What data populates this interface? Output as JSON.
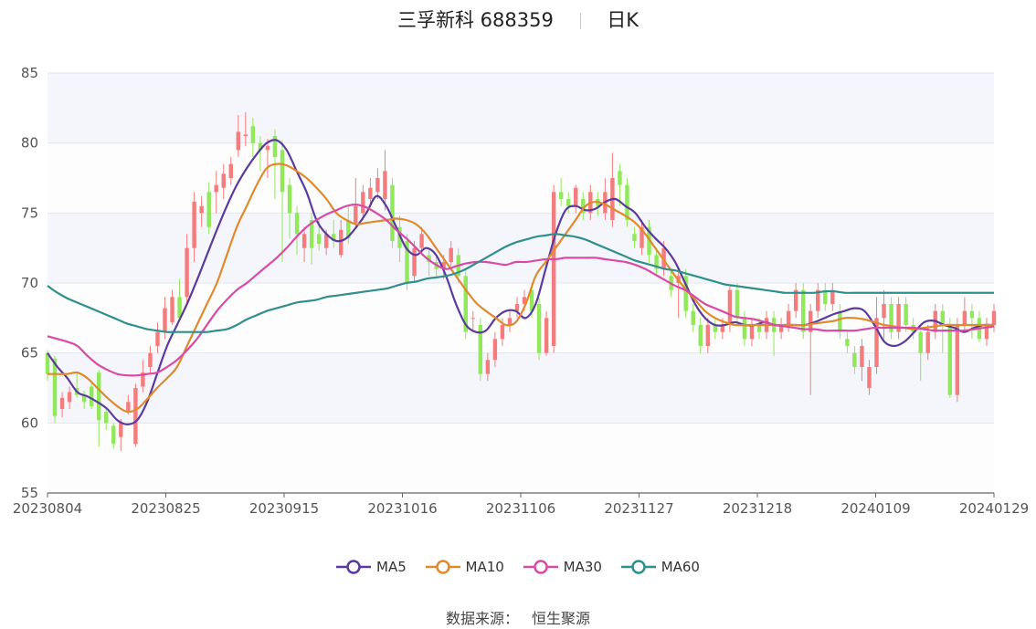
{
  "header": {
    "stock_title": "三孚新科 688359",
    "period": "日K"
  },
  "source": {
    "label": "数据来源：",
    "value": "恒生聚源"
  },
  "legend": [
    {
      "name": "MA5",
      "color": "#5b3a9e"
    },
    {
      "name": "MA10",
      "color": "#e08a2c"
    },
    {
      "name": "MA30",
      "color": "#d94aa6"
    },
    {
      "name": "MA60",
      "color": "#2f8f8c"
    }
  ],
  "colors": {
    "up": "#f47c7c",
    "down": "#91e85a",
    "grid_band": "#f5f6fb",
    "axis": "#555"
  },
  "chart_data": {
    "type": "candlestick",
    "ylim": [
      55,
      85
    ],
    "yticks": [
      55,
      60,
      65,
      70,
      75,
      80,
      85
    ],
    "xticks": [
      "20230804",
      "20230825",
      "20230915",
      "20231016",
      "20231106",
      "20231127",
      "20231218",
      "20240109",
      "20240129"
    ],
    "grid": true,
    "legend_position": "bottom",
    "candles": [
      [
        65.0,
        63.5,
        65.2,
        63.0
      ],
      [
        64.6,
        60.5,
        64.8,
        60.0
      ],
      [
        61.0,
        61.8,
        62.2,
        60.4
      ],
      [
        61.5,
        62.2,
        62.6,
        61.0
      ],
      [
        62.5,
        62.0,
        63.5,
        61.8
      ],
      [
        62.0,
        61.5,
        62.3,
        61.0
      ],
      [
        62.6,
        61.2,
        63.0,
        61.0
      ],
      [
        63.6,
        60.2,
        63.8,
        58.3
      ],
      [
        60.8,
        60.0,
        61.0,
        59.5
      ],
      [
        59.8,
        58.5,
        60.0,
        58.2
      ],
      [
        59.0,
        60.0,
        60.3,
        58.0
      ],
      [
        60.8,
        61.5,
        62.0,
        60.6
      ],
      [
        58.5,
        62.5,
        62.8,
        58.3
      ],
      [
        62.6,
        63.6,
        64.5,
        62.2
      ],
      [
        64.0,
        65.0,
        65.5,
        63.5
      ],
      [
        65.5,
        66.5,
        67.2,
        65.0
      ],
      [
        66.5,
        68.2,
        69.0,
        66.0
      ],
      [
        67.2,
        69.0,
        69.5,
        67.0
      ],
      [
        69.0,
        67.5,
        70.3,
        67.3
      ],
      [
        69.0,
        72.5,
        73.5,
        68.5
      ],
      [
        72.5,
        75.8,
        76.5,
        71.5
      ],
      [
        75.0,
        75.5,
        76.2,
        74.0
      ],
      [
        76.5,
        74.0,
        77.2,
        73.5
      ],
      [
        76.5,
        77.0,
        78.0,
        75.0
      ],
      [
        76.8,
        77.8,
        78.5,
        76.0
      ],
      [
        77.5,
        78.5,
        79.0,
        77.0
      ],
      [
        79.5,
        80.8,
        82.0,
        79.0
      ],
      [
        80.5,
        80.6,
        82.2,
        79.8
      ],
      [
        81.2,
        80.0,
        81.8,
        79.0
      ],
      [
        80.0,
        79.5,
        80.5,
        78.0
      ],
      [
        79.5,
        79.8,
        80.3,
        77.5
      ],
      [
        80.5,
        79.0,
        81.0,
        76.0
      ],
      [
        79.5,
        76.5,
        80.2,
        71.5
      ],
      [
        77.0,
        75.0,
        77.5,
        73.2
      ],
      [
        75.0,
        73.5,
        75.5,
        72.0
      ],
      [
        72.5,
        73.5,
        74.0,
        71.5
      ],
      [
        74.5,
        72.5,
        75.0,
        71.3
      ],
      [
        73.5,
        72.8,
        74.5,
        72.3
      ],
      [
        72.5,
        73.5,
        73.8,
        72.0
      ],
      [
        73.5,
        73.0,
        74.5,
        72.5
      ],
      [
        72.0,
        73.8,
        74.5,
        71.8
      ],
      [
        74.5,
        73.2,
        75.5,
        72.8
      ],
      [
        74.3,
        75.5,
        77.5,
        74.0
      ],
      [
        75.0,
        76.5,
        77.0,
        74.5
      ],
      [
        76.0,
        76.8,
        77.5,
        75.5
      ],
      [
        76.5,
        77.5,
        78.2,
        76.0
      ],
      [
        76.0,
        78.0,
        79.5,
        75.2
      ],
      [
        77.0,
        73.0,
        77.5,
        72.5
      ],
      [
        74.0,
        72.5,
        74.8,
        71.5
      ],
      [
        73.0,
        70.0,
        73.5,
        69.5
      ],
      [
        70.5,
        72.5,
        73.0,
        70.0
      ],
      [
        72.5,
        73.5,
        74.0,
        72.0
      ],
      [
        72.0,
        71.5,
        72.5,
        70.5
      ],
      [
        71.5,
        71.0,
        72.0,
        70.5
      ],
      [
        71.0,
        71.5,
        72.0,
        70.3
      ],
      [
        71.5,
        72.5,
        73.0,
        71.2
      ],
      [
        72.0,
        70.5,
        72.5,
        70.0
      ],
      [
        70.5,
        66.5,
        71.0,
        66.0
      ],
      [
        67.5,
        67.5,
        68.0,
        66.5
      ],
      [
        67.0,
        63.5,
        67.5,
        63.0
      ],
      [
        63.5,
        64.5,
        65.0,
        63.0
      ],
      [
        64.5,
        66.0,
        66.5,
        64.0
      ],
      [
        66.0,
        67.0,
        67.5,
        65.5
      ],
      [
        67.0,
        67.5,
        68.0,
        66.5
      ],
      [
        68.0,
        68.5,
        69.0,
        67.5
      ],
      [
        68.5,
        69.0,
        69.5,
        68.0
      ],
      [
        69.5,
        68.0,
        70.0,
        67.5
      ],
      [
        68.5,
        65.0,
        69.0,
        64.5
      ],
      [
        65.0,
        67.5,
        68.0,
        64.8
      ],
      [
        65.5,
        76.5,
        77.0,
        65.0
      ],
      [
        76.5,
        76.0,
        77.5,
        75.5
      ],
      [
        76.0,
        75.5,
        76.5,
        75.0
      ],
      [
        75.5,
        76.8,
        77.0,
        75.0
      ],
      [
        76.0,
        75.0,
        76.5,
        74.5
      ],
      [
        75.0,
        76.5,
        77.0,
        74.5
      ],
      [
        76.0,
        75.5,
        76.5,
        74.8
      ],
      [
        75.0,
        76.5,
        77.5,
        74.5
      ],
      [
        74.5,
        77.5,
        79.3,
        74.0
      ],
      [
        78.0,
        77.0,
        78.5,
        75.5
      ],
      [
        77.0,
        74.5,
        77.5,
        74.0
      ],
      [
        73.5,
        73.0,
        74.0,
        72.5
      ],
      [
        72.5,
        74.0,
        74.5,
        72.0
      ],
      [
        74.0,
        72.0,
        74.5,
        71.5
      ],
      [
        72.0,
        71.0,
        72.5,
        70.5
      ],
      [
        71.0,
        72.5,
        73.0,
        70.5
      ],
      [
        70.5,
        69.5,
        71.0,
        69.0
      ],
      [
        70.0,
        70.5,
        71.0,
        67.5
      ],
      [
        70.5,
        68.0,
        71.0,
        67.5
      ],
      [
        68.0,
        67.0,
        68.5,
        66.5
      ],
      [
        67.0,
        65.5,
        67.5,
        65.0
      ],
      [
        65.5,
        67.0,
        67.5,
        65.0
      ],
      [
        67.0,
        66.5,
        67.5,
        66.0
      ],
      [
        66.5,
        67.0,
        67.5,
        66.0
      ],
      [
        67.0,
        69.5,
        69.8,
        66.5
      ],
      [
        69.5,
        67.5,
        70.0,
        67.0
      ],
      [
        67.5,
        66.0,
        68.0,
        65.5
      ],
      [
        66.0,
        67.0,
        67.5,
        65.5
      ],
      [
        67.0,
        66.5,
        67.5,
        66.0
      ],
      [
        66.5,
        67.5,
        68.0,
        66.0
      ],
      [
        67.5,
        66.5,
        68.0,
        64.8
      ],
      [
        66.5,
        67.0,
        67.5,
        66.0
      ],
      [
        67.0,
        68.0,
        68.5,
        66.5
      ],
      [
        68.0,
        69.5,
        70.0,
        67.5
      ],
      [
        69.5,
        66.5,
        70.0,
        66.0
      ],
      [
        66.5,
        68.0,
        68.5,
        62.0
      ],
      [
        68.0,
        69.5,
        70.0,
        67.5
      ],
      [
        69.5,
        68.5,
        70.0,
        68.0
      ],
      [
        68.5,
        69.5,
        70.0,
        68.0
      ],
      [
        68.0,
        66.5,
        68.5,
        66.0
      ],
      [
        66.0,
        65.5,
        66.5,
        65.0
      ],
      [
        65.0,
        64.0,
        65.5,
        63.5
      ],
      [
        64.0,
        65.5,
        66.0,
        63.0
      ],
      [
        62.5,
        64.0,
        64.5,
        62.0
      ],
      [
        64.0,
        67.5,
        69.0,
        63.5
      ],
      [
        67.5,
        68.5,
        69.5,
        66.0
      ],
      [
        68.5,
        66.5,
        69.0,
        66.0
      ],
      [
        66.5,
        68.5,
        69.0,
        66.0
      ],
      [
        68.5,
        67.0,
        69.0,
        66.5
      ],
      [
        67.0,
        66.5,
        67.5,
        66.0
      ],
      [
        66.5,
        65.0,
        67.0,
        63.0
      ],
      [
        65.0,
        66.5,
        67.0,
        64.5
      ],
      [
        66.5,
        68.0,
        68.5,
        66.0
      ],
      [
        68.0,
        67.0,
        68.5,
        65.0
      ],
      [
        67.0,
        62.0,
        67.5,
        61.8
      ],
      [
        62.0,
        67.0,
        67.5,
        61.5
      ],
      [
        67.0,
        68.0,
        69.0,
        66.5
      ],
      [
        68.0,
        67.5,
        68.5,
        66.0
      ],
      [
        67.5,
        66.0,
        68.0,
        65.8
      ],
      [
        66.0,
        67.0,
        67.5,
        65.5
      ],
      [
        67.0,
        68.0,
        68.5,
        66.5
      ]
    ],
    "series": [
      {
        "name": "MA5",
        "values": [
          65.0,
          64.0,
          63.2,
          62.2,
          61.9,
          61.5,
          61.0,
          60.2,
          59.9,
          60.2,
          61.5,
          63.5,
          65.5,
          67.0,
          68.5,
          70.2,
          72.0,
          73.8,
          75.5,
          77.0,
          78.2,
          79.2,
          80.0,
          80.2,
          79.5,
          78.0,
          76.5,
          74.5,
          73.5,
          73.0,
          73.2,
          74.0,
          75.0,
          76.2,
          75.5,
          74.0,
          72.5,
          72.0,
          72.5,
          72.0,
          70.5,
          68.5,
          67.0,
          66.5,
          66.6,
          67.5,
          68.0,
          68.0,
          67.5,
          68.5,
          71.0,
          73.5,
          75.2,
          75.5,
          75.2,
          75.3,
          75.8,
          76.0,
          75.5,
          75.0,
          74.0,
          73.2,
          72.5,
          71.5,
          70.0,
          68.5,
          67.5,
          67.0,
          67.0,
          67.2,
          67.0,
          67.0,
          67.2,
          67.0,
          67.0,
          67.0,
          67.0,
          67.2,
          67.5,
          67.8,
          68.0,
          68.2,
          68.0,
          67.0,
          65.8,
          65.5,
          65.8,
          66.5,
          67.2,
          67.3,
          67.0,
          66.8,
          66.5,
          66.8,
          67.0,
          67.0
        ]
      },
      {
        "name": "MA10",
        "values": [
          63.5,
          63.5,
          63.5,
          63.6,
          63.2,
          62.5,
          61.8,
          61.2,
          60.8,
          61.0,
          61.7,
          62.5,
          63.2,
          64.0,
          65.5,
          67.0,
          68.5,
          70.0,
          72.0,
          74.0,
          75.5,
          77.0,
          78.2,
          78.5,
          78.4,
          78.0,
          77.5,
          76.8,
          76.0,
          75.0,
          74.5,
          74.2,
          74.3,
          74.4,
          74.5,
          74.6,
          74.5,
          74.2,
          73.5,
          72.5,
          71.5,
          70.5,
          69.5,
          68.6,
          68.0,
          67.5,
          67.0,
          67.2,
          68.5,
          70.5,
          71.5,
          72.5,
          73.5,
          74.5,
          75.5,
          75.8,
          75.6,
          75.2,
          74.8,
          74.3,
          73.5,
          72.5,
          71.5,
          70.5,
          69.6,
          68.8,
          68.0,
          67.5,
          67.2,
          67.0,
          67.0,
          67.0,
          67.0,
          67.0,
          67.0,
          67.0,
          67.0,
          67.1,
          67.2,
          67.3,
          67.5,
          67.5,
          67.4,
          67.2,
          67.0,
          66.9,
          66.8,
          66.7,
          66.8,
          66.9,
          67.0,
          67.0,
          67.0,
          67.0,
          67.0,
          67.0
        ]
      },
      {
        "name": "MA30",
        "values": [
          66.2,
          66.0,
          65.8,
          65.5,
          64.8,
          64.2,
          63.8,
          63.5,
          63.4,
          63.4,
          63.5,
          63.6,
          64.0,
          64.5,
          65.2,
          66.0,
          67.0,
          68.0,
          68.8,
          69.5,
          70.0,
          70.6,
          71.2,
          71.8,
          72.5,
          73.3,
          74.0,
          74.5,
          74.9,
          75.2,
          75.5,
          75.6,
          75.4,
          75.0,
          74.5,
          73.8,
          73.2,
          72.5,
          71.8,
          71.3,
          71.0,
          71.2,
          71.4,
          71.5,
          71.5,
          71.4,
          71.3,
          71.5,
          71.5,
          71.6,
          71.7,
          71.7,
          71.8,
          71.8,
          71.8,
          71.8,
          71.7,
          71.6,
          71.5,
          71.3,
          71.0,
          70.6,
          70.2,
          69.8,
          69.5,
          69.0,
          68.5,
          68.2,
          67.9,
          67.6,
          67.5,
          67.4,
          67.2,
          67.0,
          66.9,
          66.8,
          66.7,
          66.7,
          66.6,
          66.6,
          66.6,
          66.6,
          66.7,
          66.8,
          66.8,
          66.8,
          66.8,
          66.8,
          66.7,
          66.6,
          66.6,
          66.6,
          66.6,
          66.7,
          66.8,
          66.9
        ]
      },
      {
        "name": "MA60",
        "values": [
          69.8,
          69.3,
          68.9,
          68.6,
          68.3,
          68.0,
          67.7,
          67.4,
          67.1,
          66.9,
          66.7,
          66.6,
          66.5,
          66.5,
          66.5,
          66.5,
          66.5,
          66.6,
          66.7,
          67.0,
          67.4,
          67.7,
          68.0,
          68.2,
          68.4,
          68.6,
          68.7,
          68.8,
          69.0,
          69.1,
          69.2,
          69.3,
          69.4,
          69.5,
          69.6,
          69.8,
          70.0,
          70.1,
          70.3,
          70.4,
          70.5,
          70.7,
          71.0,
          71.4,
          71.8,
          72.2,
          72.6,
          72.9,
          73.1,
          73.3,
          73.4,
          73.5,
          73.4,
          73.3,
          73.1,
          72.8,
          72.5,
          72.2,
          71.9,
          71.6,
          71.4,
          71.2,
          71.0,
          70.9,
          70.7,
          70.5,
          70.3,
          70.1,
          69.9,
          69.8,
          69.7,
          69.6,
          69.5,
          69.4,
          69.3,
          69.3,
          69.3,
          69.3,
          69.4,
          69.4,
          69.3,
          69.3,
          69.3,
          69.3,
          69.3,
          69.3,
          69.3,
          69.3,
          69.3,
          69.3,
          69.3,
          69.3,
          69.3,
          69.3,
          69.3,
          69.3
        ]
      }
    ]
  }
}
